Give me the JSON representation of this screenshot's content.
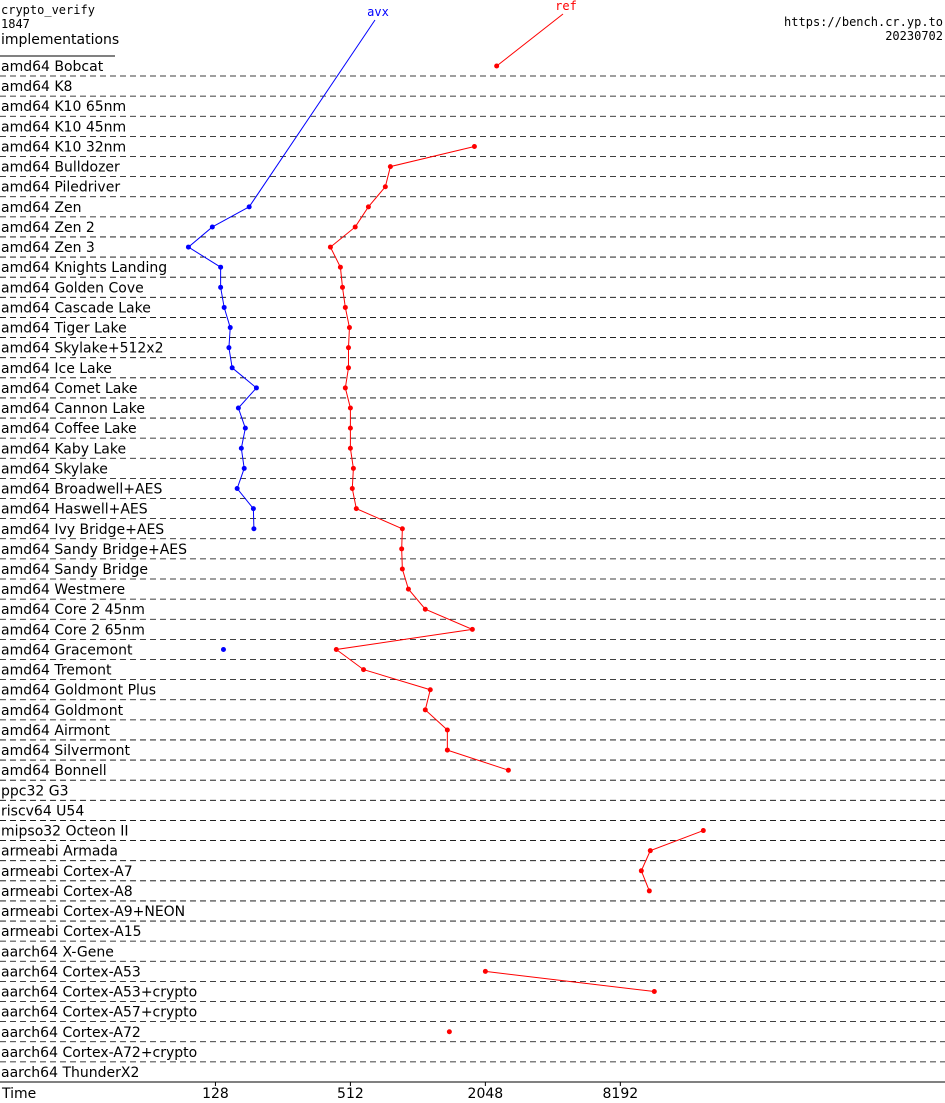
{
  "chart_data": {
    "type": "line",
    "title": "crypto_verify",
    "subtitle": "1847",
    "y_label": "implementations",
    "source": "https://bench.cr.yp.to",
    "date": "20230702",
    "x_label": "Time",
    "log_x": true,
    "xlim": [
      14,
      230000
    ],
    "xticks": [
      128,
      512,
      2048,
      8192
    ],
    "categories": [
      "amd64 Bobcat",
      "amd64 K8",
      "amd64 K10 65nm",
      "amd64 K10 45nm",
      "amd64 K10 32nm",
      "amd64 Bulldozer",
      "amd64 Piledriver",
      "amd64 Zen",
      "amd64 Zen 2",
      "amd64 Zen 3",
      "amd64 Knights Landing",
      "amd64 Golden Cove",
      "amd64 Cascade Lake",
      "amd64 Tiger Lake",
      "amd64 Skylake+512x2",
      "amd64 Ice Lake",
      "amd64 Comet Lake",
      "amd64 Cannon Lake",
      "amd64 Coffee Lake",
      "amd64 Kaby Lake",
      "amd64 Skylake",
      "amd64 Broadwell+AES",
      "amd64 Haswell+AES",
      "amd64 Ivy Bridge+AES",
      "amd64 Sandy Bridge+AES",
      "amd64 Sandy Bridge",
      "amd64 Westmere",
      "amd64 Core 2 45nm",
      "amd64 Core 2 65nm",
      "amd64 Gracemont",
      "amd64 Tremont",
      "amd64 Goldmont Plus",
      "amd64 Goldmont",
      "amd64 Airmont",
      "amd64 Silvermont",
      "amd64 Bonnell",
      "ppc32 G3",
      "riscv64 U54",
      "mipso32 Octeon II",
      "armeabi Armada",
      "armeabi Cortex-A7",
      "armeabi Cortex-A8",
      "armeabi Cortex-A9+NEON",
      "armeabi Cortex-A15",
      "aarch64 X-Gene",
      "aarch64 Cortex-A53",
      "aarch64 Cortex-A53+crypto",
      "aarch64 Cortex-A57+crypto",
      "aarch64 Cortex-A72",
      "aarch64 Cortex-A72+crypto",
      "aarch64 ThunderX2"
    ],
    "series": [
      {
        "name": "avx",
        "color": "#0000ff",
        "values": [
          null,
          null,
          null,
          null,
          null,
          null,
          null,
          181,
          124,
          97,
          135,
          135,
          140,
          149,
          147,
          152,
          195,
          162,
          174,
          167,
          172,
          160,
          189,
          190,
          null,
          null,
          null,
          null,
          null,
          139,
          null,
          null,
          null,
          null,
          null,
          null,
          null,
          null,
          null,
          null,
          null,
          null,
          null,
          null,
          null,
          null,
          null,
          null,
          null,
          null,
          null
        ]
      },
      {
        "name": "ref",
        "color": "#ff0000",
        "values": [
          2300,
          null,
          null,
          null,
          1830,
          772,
          733,
          616,
          538,
          417,
          462,
          472,
          486,
          507,
          502,
          502,
          486,
          512,
          512,
          512,
          528,
          522,
          544,
          873,
          867,
          873,
          929,
          1105,
          1792,
          443,
          586,
          1163,
          1105,
          1386,
          1386,
          2594,
          null,
          null,
          19213,
          11146,
          10163,
          11034,
          null,
          null,
          null,
          2048,
          11614,
          null,
          1415,
          null,
          null
        ]
      }
    ]
  }
}
